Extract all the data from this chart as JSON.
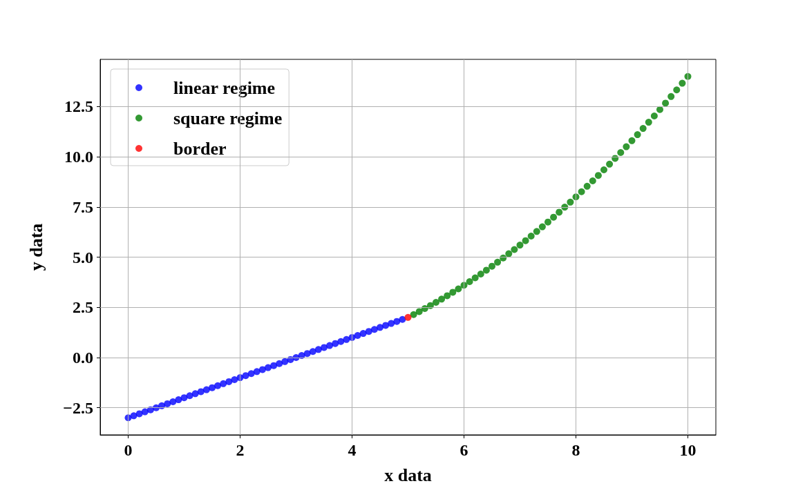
{
  "chart_data": {
    "type": "scatter",
    "xlabel": "x data",
    "ylabel": "y data",
    "marker": "circle",
    "grid": true,
    "legend": "top left",
    "xlim": [
      -0.5,
      10.5
    ],
    "xticks": [
      0,
      2,
      4,
      6,
      8,
      10
    ],
    "ylim": [
      -3.85,
      14.85
    ],
    "yticks": [
      {
        "value": -2.5,
        "label": "−2.5"
      },
      {
        "value": 0,
        "label": "0.0"
      },
      {
        "value": 2.5,
        "label": "2.5"
      },
      {
        "value": 5,
        "label": "5.0"
      },
      {
        "value": 7.5,
        "label": "7.5"
      },
      {
        "value": 10,
        "label": "10.0"
      },
      {
        "value": 12.5,
        "label": "12.5"
      }
    ],
    "series": [
      {
        "name": "linear regime",
        "color": "#0000ff",
        "x": [
          0,
          0.1,
          0.2,
          0.3,
          0.4,
          0.5,
          0.6,
          0.7,
          0.8,
          0.9,
          1,
          1.1,
          1.2,
          1.3,
          1.4,
          1.5,
          1.6,
          1.7,
          1.8,
          1.9,
          2,
          2.1,
          2.2,
          2.3,
          2.4,
          2.5,
          2.6,
          2.7,
          2.8,
          2.9,
          3,
          3.1,
          3.2,
          3.3,
          3.4,
          3.5,
          3.6,
          3.7,
          3.8,
          3.9,
          4,
          4.1,
          4.2,
          4.3,
          4.4,
          4.5,
          4.6,
          4.7,
          4.8,
          4.9
        ],
        "values": [
          -3,
          -2.9,
          -2.8,
          -2.7,
          -2.6,
          -2.5,
          -2.4,
          -2.3,
          -2.2,
          -2.1,
          -2,
          -1.9,
          -1.8,
          -1.7,
          -1.6,
          -1.5,
          -1.4,
          -1.3,
          -1.2,
          -1.1,
          -1,
          -0.9,
          -0.8,
          -0.7,
          -0.6,
          -0.5,
          -0.4,
          -0.3,
          -0.2,
          -0.1,
          0,
          0.1,
          0.2,
          0.3,
          0.4,
          0.5,
          0.6,
          0.7,
          0.8,
          0.9,
          1,
          1.1,
          1.2,
          1.3,
          1.4,
          1.5,
          1.6,
          1.7,
          1.8,
          1.9
        ]
      },
      {
        "name": "square regime",
        "color": "#008000",
        "x": [
          5.1,
          5.2,
          5.3,
          5.4,
          5.5,
          5.6,
          5.7,
          5.8,
          5.9,
          6,
          6.1,
          6.2,
          6.3,
          6.4,
          6.5,
          6.6,
          6.7,
          6.8,
          6.9,
          7,
          7.1,
          7.2,
          7.3,
          7.4,
          7.5,
          7.6,
          7.7,
          7.8,
          7.9,
          8,
          8.1,
          8.2,
          8.3,
          8.4,
          8.5,
          8.6,
          8.7,
          8.8,
          8.9,
          9,
          9.1,
          9.2,
          9.3,
          9.4,
          9.5,
          9.6,
          9.7,
          9.8,
          9.9,
          10
        ],
        "values": [
          2.14,
          2.29,
          2.44,
          2.59,
          2.75,
          2.91,
          3.08,
          3.25,
          3.42,
          3.6,
          3.78,
          3.97,
          4.16,
          4.35,
          4.55,
          4.75,
          4.96,
          5.17,
          5.38,
          5.6,
          5.82,
          6.05,
          6.28,
          6.51,
          6.75,
          6.99,
          7.24,
          7.49,
          7.74,
          8,
          8.26,
          8.53,
          8.8,
          9.07,
          9.35,
          9.63,
          9.92,
          10.21,
          10.5,
          10.8,
          11.1,
          11.41,
          11.72,
          12.03,
          12.35,
          12.67,
          13,
          13.33,
          13.66,
          14
        ]
      },
      {
        "name": "border",
        "color": "#ff0000",
        "x": [
          5
        ],
        "values": [
          2
        ]
      }
    ]
  }
}
